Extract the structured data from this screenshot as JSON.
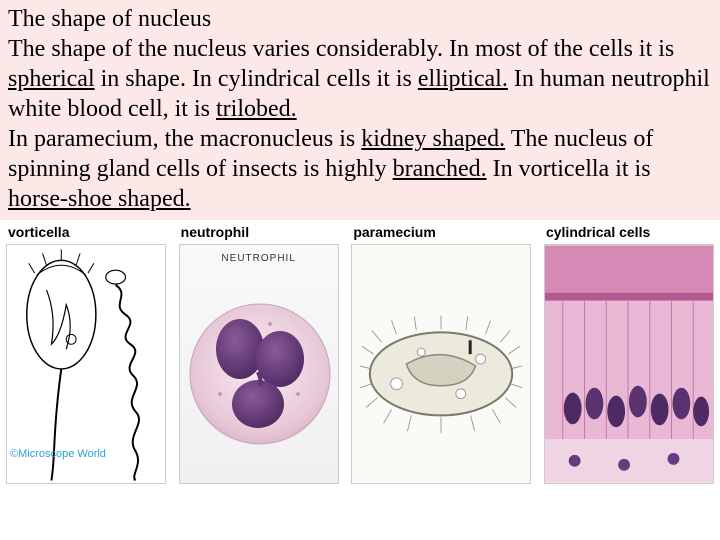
{
  "title": "The shape of nucleus",
  "body_parts": [
    {
      "t": "   The shape of the nucleus varies considerably.  In most of the cells it is ",
      "u": false
    },
    {
      "t": "spherical",
      "u": true
    },
    {
      "t": " in shape.  In cylindrical cells it is ",
      "u": false
    },
    {
      "t": "elliptical.",
      "u": true
    },
    {
      "t": " In human neutrophil white blood cell, it is ",
      "u": false
    },
    {
      "t": "trilobed.",
      "u": true
    },
    {
      "t": "\n In paramecium, the macronucleus is ",
      "u": false
    },
    {
      "t": "kidney shaped.",
      "u": true
    },
    {
      "t": "  The nucleus of spinning gland cells of insects is highly ",
      "u": false
    },
    {
      "t": "branched.",
      "u": true
    },
    {
      "t": " In vorticella it is ",
      "u": false
    },
    {
      "t": "horse-shoe shaped.",
      "u": true
    }
  ],
  "images": {
    "vorticella": {
      "label": "vorticella",
      "watermark": "©Microscope World"
    },
    "neutrophil": {
      "label": "neutrophil",
      "inner_title": "NEUTROPHIL",
      "lobe_color": "#6b3a7a",
      "cell_color": "#f4e0ea",
      "bg": "#f0eef0"
    },
    "paramecium": {
      "label": "paramecium",
      "body_color": "#e8e6dc",
      "outline": "#888"
    },
    "cylindrical": {
      "label": "cylindrical cells",
      "tissue_color": "#c86aa8",
      "nucleus_color": "#5a2a6a",
      "surface_color": "#d89abf"
    }
  },
  "colors": {
    "text_bg": "#fde8e8"
  }
}
